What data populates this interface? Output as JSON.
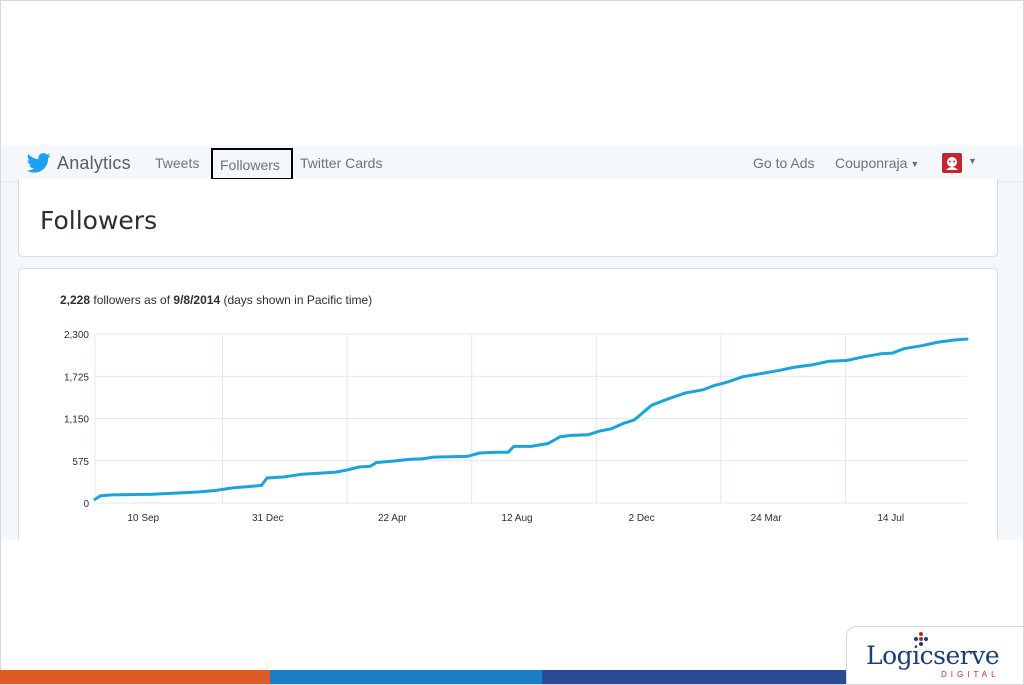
{
  "topbar": {
    "brand": "Analytics",
    "nav": [
      "Tweets",
      "Followers",
      "Twitter Cards"
    ],
    "active_nav": "Followers",
    "go_to_ads": "Go to Ads",
    "account": "Couponraja",
    "brand_color": "#1da1f2"
  },
  "page": {
    "title": "Followers"
  },
  "summary": {
    "count": "2,228",
    "text_1": " followers as of ",
    "date": "9/8/2014",
    "text_2": " (days shown in Pacific time)"
  },
  "chart_data": {
    "type": "line",
    "title": "",
    "xlabel": "",
    "ylabel": "",
    "y_ticks": [
      "2,300",
      "1,725",
      "1,150",
      "575",
      "0"
    ],
    "ylim": [
      0,
      2300
    ],
    "x_ticks": [
      "10 Sep",
      "31 Dec",
      "22 Apr",
      "12 Aug",
      "2 Dec",
      "24 Mar",
      "14 Jul"
    ],
    "grid": true,
    "line_color": "#1ba3dc",
    "series": [
      {
        "values": [
          [
            0,
            50
          ],
          [
            0.01,
            100
          ],
          [
            0.03,
            110
          ],
          [
            0.06,
            115
          ],
          [
            0.1,
            120
          ],
          [
            0.14,
            135
          ],
          [
            0.18,
            150
          ],
          [
            0.21,
            170
          ],
          [
            0.24,
            205
          ],
          [
            0.27,
            225
          ],
          [
            0.29,
            240
          ],
          [
            0.3,
            340
          ],
          [
            0.33,
            355
          ],
          [
            0.36,
            390
          ],
          [
            0.39,
            405
          ],
          [
            0.42,
            420
          ],
          [
            0.44,
            450
          ],
          [
            0.46,
            490
          ],
          [
            0.48,
            500
          ],
          [
            0.49,
            550
          ],
          [
            0.52,
            570
          ],
          [
            0.55,
            595
          ],
          [
            0.57,
            600
          ],
          [
            0.59,
            625
          ],
          [
            0.62,
            630
          ],
          [
            0.65,
            635
          ],
          [
            0.67,
            680
          ],
          [
            0.7,
            690
          ],
          [
            0.72,
            690
          ],
          [
            0.73,
            770
          ],
          [
            0.76,
            770
          ],
          [
            0.79,
            810
          ],
          [
            0.81,
            900
          ],
          [
            0.83,
            920
          ],
          [
            0.86,
            930
          ],
          [
            0.88,
            980
          ],
          [
            0.9,
            1010
          ],
          [
            0.92,
            1080
          ],
          [
            0.94,
            1130
          ],
          [
            0.97,
            1330
          ],
          [
            1.0,
            1420
          ],
          [
            1.03,
            1500
          ],
          [
            1.06,
            1540
          ],
          [
            1.08,
            1600
          ],
          [
            1.1,
            1640
          ],
          [
            1.13,
            1720
          ],
          [
            1.16,
            1760
          ],
          [
            1.19,
            1800
          ],
          [
            1.22,
            1850
          ],
          [
            1.25,
            1880
          ],
          [
            1.28,
            1930
          ],
          [
            1.31,
            1940
          ],
          [
            1.34,
            1990
          ],
          [
            1.37,
            2030
          ],
          [
            1.39,
            2040
          ],
          [
            1.41,
            2100
          ],
          [
            1.44,
            2140
          ],
          [
            1.47,
            2190
          ],
          [
            1.5,
            2220
          ],
          [
            1.52,
            2230
          ]
        ]
      }
    ]
  },
  "branding": {
    "logo_word": "Logicserve",
    "logo_sub": "DIGITAL",
    "bar_colors": [
      "#e05a27",
      "#1b7dc2",
      "#2a4a94"
    ]
  }
}
